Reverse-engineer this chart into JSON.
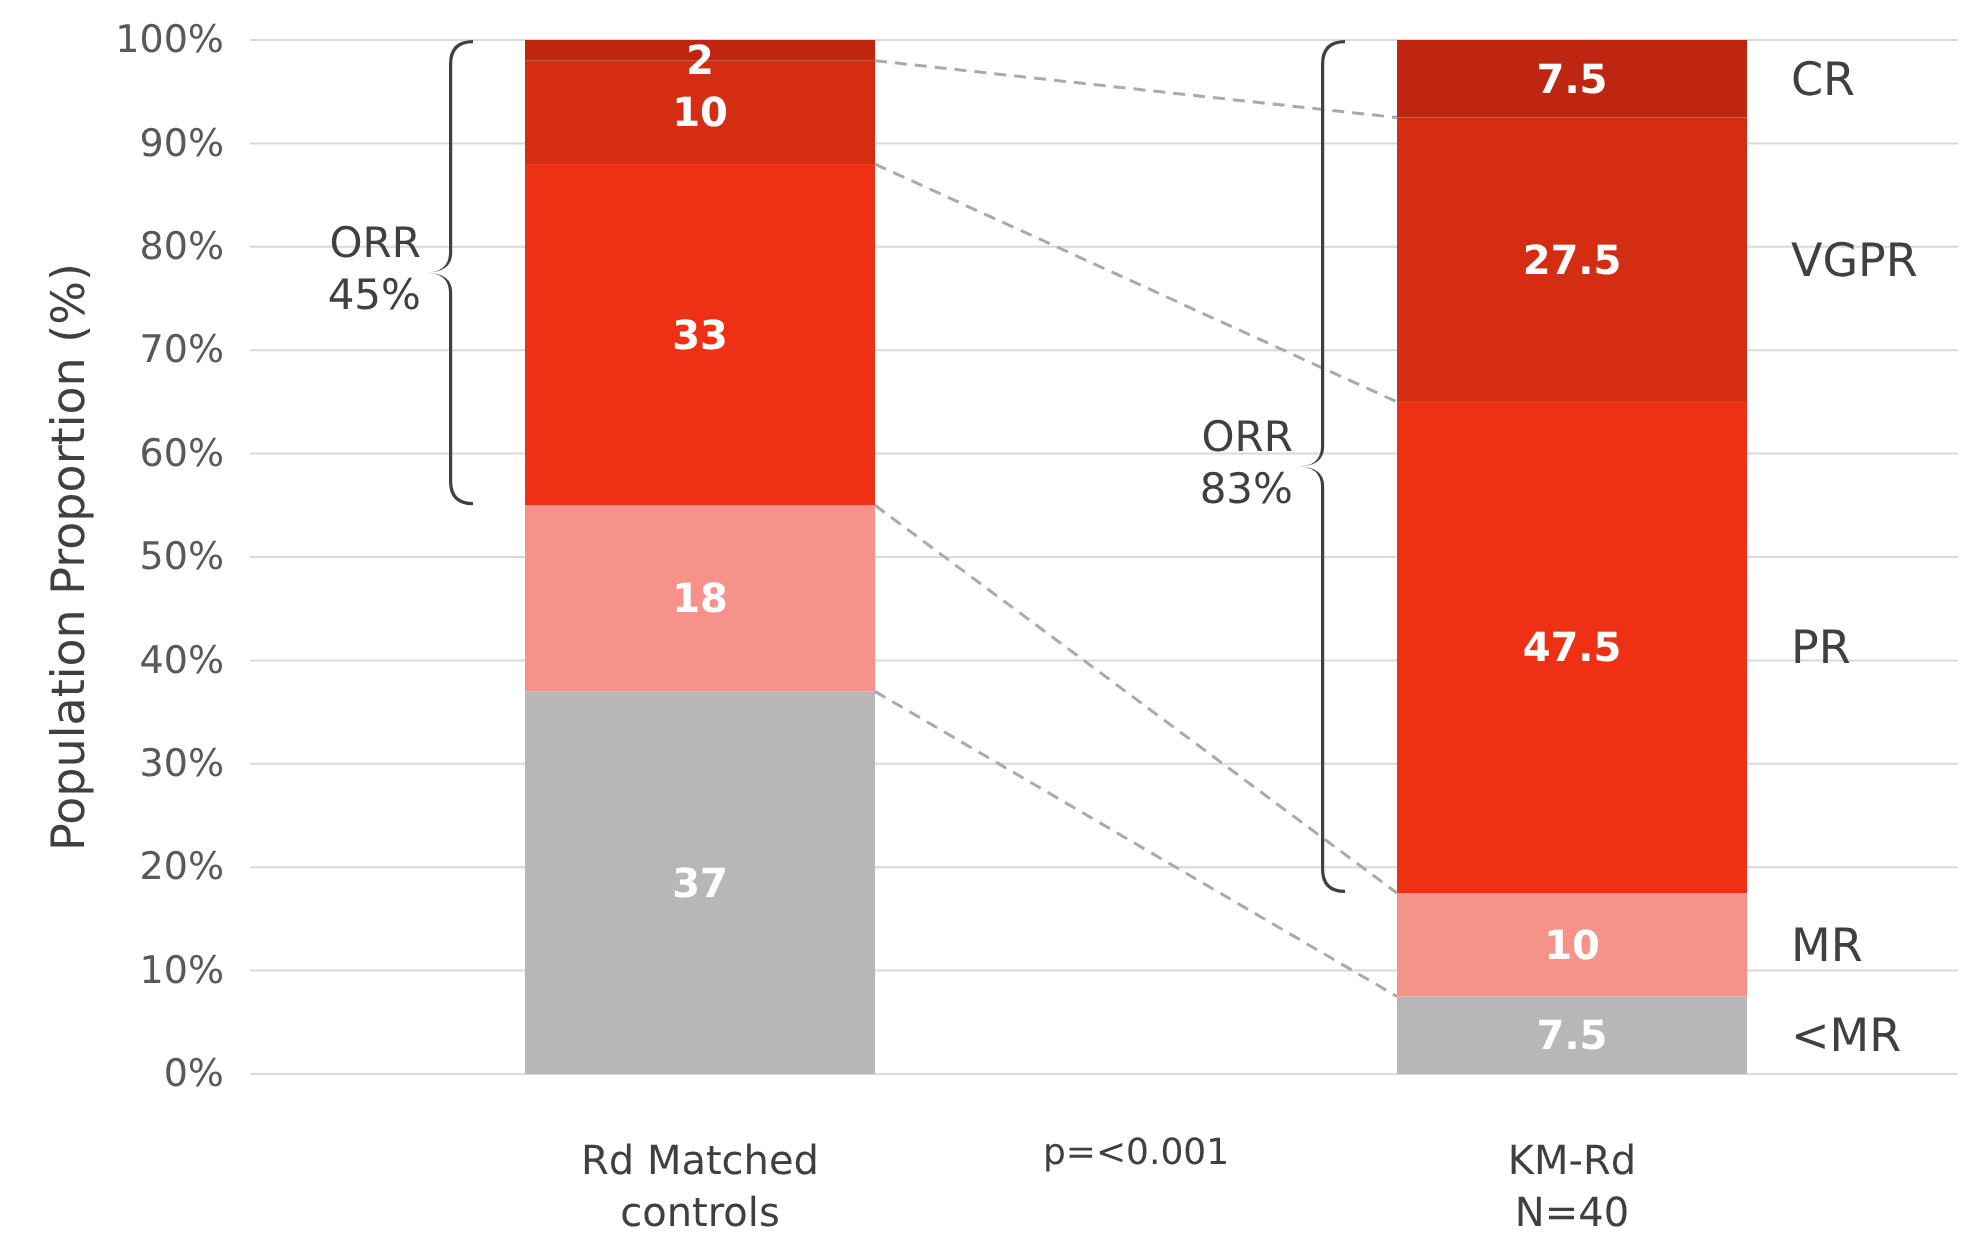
{
  "chart_data": {
    "type": "bar",
    "stacked": true,
    "ylabel": "Population Proportion (%)",
    "categories": [
      "Rd Matched controls",
      "KM-Rd N=40"
    ],
    "series": [
      {
        "name": "<MR",
        "color": "#b7b7b7",
        "values": [
          37,
          7.5
        ]
      },
      {
        "name": "MR",
        "color": "#f7928a",
        "values": [
          18,
          10
        ]
      },
      {
        "name": "PR",
        "color": "#ee3114",
        "values": [
          33,
          47.5
        ]
      },
      {
        "name": "VGPR",
        "color": "#d42e12",
        "values": [
          10,
          27.5
        ]
      },
      {
        "name": "CR",
        "color": "#bf2612",
        "values": [
          2,
          7.5
        ]
      }
    ],
    "ylim": [
      0,
      100
    ],
    "yticks": [
      {
        "value": 0,
        "label": "0%"
      },
      {
        "value": 10,
        "label": "10%"
      },
      {
        "value": 20,
        "label": "20%"
      },
      {
        "value": 30,
        "label": "30%"
      },
      {
        "value": 40,
        "label": "40%"
      },
      {
        "value": 50,
        "label": "50%"
      },
      {
        "value": 60,
        "label": "60%"
      },
      {
        "value": 70,
        "label": "70%"
      },
      {
        "value": 80,
        "label": "80%"
      },
      {
        "value": 90,
        "label": "90%"
      },
      {
        "value": 100,
        "label": "100%"
      }
    ],
    "grid": "y",
    "data_labels": true,
    "annotations": [
      "ORR\n45%",
      "ORR\n83%",
      "p=<0.001"
    ]
  }
}
